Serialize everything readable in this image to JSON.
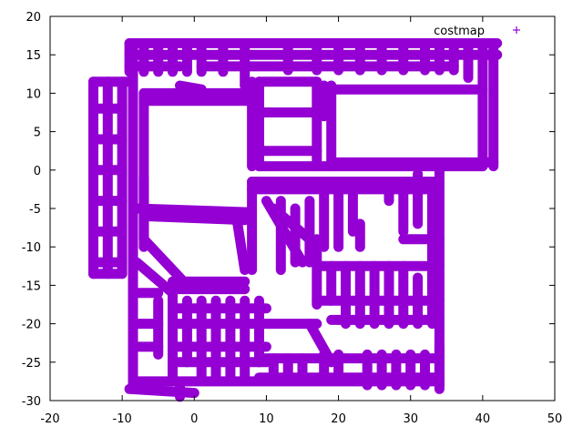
{
  "chart_data": {
    "type": "scatter",
    "title": "",
    "xlabel": "",
    "ylabel": "",
    "xlim": [
      -20,
      50
    ],
    "ylim": [
      -30,
      20
    ],
    "xticks": [
      -20,
      -10,
      0,
      10,
      20,
      30,
      40,
      50
    ],
    "yticks": [
      -30,
      -25,
      -20,
      -15,
      -10,
      -5,
      0,
      5,
      10,
      15,
      20
    ],
    "grid": false,
    "legend_position": "top-right",
    "marker": "+",
    "color": "#9400d3",
    "series": [
      {
        "name": "costmap",
        "segments": [
          [
            [
              -9,
              16.5
            ],
            [
              42,
              16.5
            ]
          ],
          [
            [
              -9,
              15
            ],
            [
              42,
              15
            ]
          ],
          [
            [
              -9,
              13.5
            ],
            [
              -2,
              13.5
            ]
          ],
          [
            [
              1,
              13.5
            ],
            [
              36,
              13.5
            ]
          ],
          [
            [
              -9,
              16.5
            ],
            [
              -9,
              12.8
            ]
          ],
          [
            [
              -7,
              16.5
            ],
            [
              -7,
              12.8
            ]
          ],
          [
            [
              -5,
              16.5
            ],
            [
              -5,
              12.8
            ]
          ],
          [
            [
              -3,
              16.5
            ],
            [
              -3,
              12.8
            ]
          ],
          [
            [
              -1,
              16.5
            ],
            [
              -1,
              12.8
            ]
          ],
          [
            [
              1,
              16.5
            ],
            [
              1,
              12.8
            ]
          ],
          [
            [
              4,
              16
            ],
            [
              4,
              12.8
            ]
          ],
          [
            [
              7,
              16.5
            ],
            [
              7,
              11
            ]
          ],
          [
            [
              13,
              16.5
            ],
            [
              13,
              13
            ]
          ],
          [
            [
              17,
              16.5
            ],
            [
              17,
              13
            ]
          ],
          [
            [
              20,
              16.5
            ],
            [
              20,
              13
            ]
          ],
          [
            [
              23,
              16.5
            ],
            [
              23,
              13
            ]
          ],
          [
            [
              26,
              16.5
            ],
            [
              26,
              13
            ]
          ],
          [
            [
              29,
              16.5
            ],
            [
              29,
              13
            ]
          ],
          [
            [
              32,
              16.5
            ],
            [
              32,
              13
            ]
          ],
          [
            [
              34,
              16.5
            ],
            [
              34,
              13
            ]
          ],
          [
            [
              36,
              16.5
            ],
            [
              36,
              13
            ]
          ],
          [
            [
              38,
              16.5
            ],
            [
              38,
              12
            ]
          ],
          [
            [
              40,
              16
            ],
            [
              40,
              0.5
            ]
          ],
          [
            [
              41.5,
              16
            ],
            [
              41.5,
              0.5
            ]
          ],
          [
            [
              -14,
              11.5
            ],
            [
              -9,
              11.5
            ]
          ],
          [
            [
              -14,
              11.5
            ],
            [
              -14,
              -13.5
            ]
          ],
          [
            [
              -12,
              11.5
            ],
            [
              -12,
              -13.5
            ]
          ],
          [
            [
              -10,
              11.5
            ],
            [
              -10,
              -13.5
            ]
          ],
          [
            [
              -14,
              8
            ],
            [
              -10,
              8
            ]
          ],
          [
            [
              -14,
              4
            ],
            [
              -10,
              4
            ]
          ],
          [
            [
              -14,
              0
            ],
            [
              -10,
              0
            ]
          ],
          [
            [
              -14,
              -4
            ],
            [
              -10,
              -4
            ]
          ],
          [
            [
              -14,
              -8
            ],
            [
              -10,
              -8
            ]
          ],
          [
            [
              -14,
              -12
            ],
            [
              -10,
              -12
            ]
          ],
          [
            [
              -14,
              -13.5
            ],
            [
              -10,
              -13.5
            ]
          ],
          [
            [
              -8.5,
              16.5
            ],
            [
              -8.5,
              -28.5
            ]
          ],
          [
            [
              -7,
              10
            ],
            [
              -7,
              -10
            ]
          ],
          [
            [
              -7,
              10
            ],
            [
              8,
              10
            ]
          ],
          [
            [
              -7,
              9
            ],
            [
              8,
              9
            ]
          ],
          [
            [
              -2,
              11
            ],
            [
              1,
              10.5
            ]
          ],
          [
            [
              8,
              11.5
            ],
            [
              8,
              0.5
            ]
          ],
          [
            [
              9,
              11.5
            ],
            [
              9,
              0.5
            ]
          ],
          [
            [
              9,
              11.5
            ],
            [
              17,
              11.5
            ]
          ],
          [
            [
              9,
              7.5
            ],
            [
              17,
              7.5
            ]
          ],
          [
            [
              9,
              2.5
            ],
            [
              17,
              2.5
            ]
          ],
          [
            [
              9,
              0.5
            ],
            [
              40,
              0.5
            ]
          ],
          [
            [
              17,
              11.5
            ],
            [
              17,
              0.5
            ]
          ],
          [
            [
              18,
              11
            ],
            [
              18,
              7
            ]
          ],
          [
            [
              19,
              11
            ],
            [
              19,
              0.5
            ]
          ],
          [
            [
              19,
              10.5
            ],
            [
              40,
              10.5
            ]
          ],
          [
            [
              19,
              1
            ],
            [
              41.5,
              1
            ]
          ],
          [
            [
              -7,
              -1
            ],
            [
              -7,
              -9
            ]
          ],
          [
            [
              -8,
              -5
            ],
            [
              8,
              -5.5
            ]
          ],
          [
            [
              -7,
              -6
            ],
            [
              7,
              -6.5
            ]
          ],
          [
            [
              -7,
              -9
            ],
            [
              -1,
              -15
            ]
          ],
          [
            [
              -8,
              -12
            ],
            [
              -3,
              -16
            ]
          ],
          [
            [
              -3,
              -14.5
            ],
            [
              7,
              -14.5
            ]
          ],
          [
            [
              -3,
              -15.5
            ],
            [
              7,
              -15.5
            ]
          ],
          [
            [
              6,
              -7
            ],
            [
              7,
              -13
            ]
          ],
          [
            [
              8,
              -1.5
            ],
            [
              8,
              -13
            ]
          ],
          [
            [
              8,
              -1.5
            ],
            [
              34,
              -1.5
            ]
          ],
          [
            [
              8,
              -2.5
            ],
            [
              34,
              -2.5
            ]
          ],
          [
            [
              10,
              -4
            ],
            [
              15,
              -12
            ]
          ],
          [
            [
              11,
              -5
            ],
            [
              16,
              -9
            ]
          ],
          [
            [
              12,
              -4
            ],
            [
              12,
              -13
            ]
          ],
          [
            [
              14,
              -5
            ],
            [
              14,
              -12
            ]
          ],
          [
            [
              16,
              -4
            ],
            [
              16,
              -12
            ]
          ],
          [
            [
              18,
              -2.5
            ],
            [
              18,
              -10
            ]
          ],
          [
            [
              20,
              -3
            ],
            [
              20,
              -10
            ]
          ],
          [
            [
              22,
              -3
            ],
            [
              22,
              -8
            ]
          ],
          [
            [
              23,
              -7
            ],
            [
              23,
              -10
            ]
          ],
          [
            [
              27,
              -2.5
            ],
            [
              27,
              -4
            ]
          ],
          [
            [
              29,
              -2.5
            ],
            [
              29,
              -8
            ]
          ],
          [
            [
              31,
              -0.5
            ],
            [
              31,
              -7
            ]
          ],
          [
            [
              33,
              -2
            ],
            [
              33,
              -15
            ]
          ],
          [
            [
              34,
              0.5
            ],
            [
              34,
              -28.5
            ]
          ],
          [
            [
              29,
              -9
            ],
            [
              34,
              -9
            ]
          ],
          [
            [
              17,
              -12.5
            ],
            [
              34,
              -12.5
            ]
          ],
          [
            [
              17,
              -9
            ],
            [
              17,
              -17.5
            ]
          ],
          [
            [
              17,
              -17
            ],
            [
              34,
              -17
            ]
          ],
          [
            [
              19,
              -12.5
            ],
            [
              19,
              -17
            ]
          ],
          [
            [
              21,
              -12.5
            ],
            [
              21,
              -20
            ]
          ],
          [
            [
              23,
              -12.5
            ],
            [
              23,
              -20
            ]
          ],
          [
            [
              25,
              -12.5
            ],
            [
              25,
              -20
            ]
          ],
          [
            [
              27,
              -12.5
            ],
            [
              27,
              -20
            ]
          ],
          [
            [
              29,
              -12.5
            ],
            [
              29,
              -20
            ]
          ],
          [
            [
              31,
              -14
            ],
            [
              31,
              -20
            ]
          ],
          [
            [
              33,
              -14
            ],
            [
              33,
              -20
            ]
          ],
          [
            [
              19,
              -19.5
            ],
            [
              34,
              -19.5
            ]
          ],
          [
            [
              -8,
              -16
            ],
            [
              -5,
              -16
            ]
          ],
          [
            [
              -8,
              -20
            ],
            [
              -5,
              -20
            ]
          ],
          [
            [
              -8,
              -23
            ],
            [
              -5,
              -23
            ]
          ],
          [
            [
              -5,
              -17
            ],
            [
              -5,
              -24
            ]
          ],
          [
            [
              -3,
              -16
            ],
            [
              -3,
              -27
            ]
          ],
          [
            [
              -3,
              -18
            ],
            [
              10,
              -18
            ]
          ],
          [
            [
              -3,
              -20
            ],
            [
              9,
              -20
            ]
          ],
          [
            [
              -3,
              -23
            ],
            [
              10,
              -23
            ]
          ],
          [
            [
              -3,
              -25
            ],
            [
              10,
              -25
            ]
          ],
          [
            [
              -1,
              -17
            ],
            [
              -1,
              -25
            ]
          ],
          [
            [
              1,
              -17
            ],
            [
              1,
              -27
            ]
          ],
          [
            [
              3,
              -17
            ],
            [
              3,
              -27
            ]
          ],
          [
            [
              5,
              -17
            ],
            [
              5,
              -27
            ]
          ],
          [
            [
              7,
              -17
            ],
            [
              7,
              -27
            ]
          ],
          [
            [
              9,
              -17
            ],
            [
              9,
              -25
            ]
          ],
          [
            [
              9,
              -20
            ],
            [
              17,
              -20
            ]
          ],
          [
            [
              16,
              -20
            ],
            [
              19,
              -25
            ]
          ],
          [
            [
              9,
              -24.5
            ],
            [
              34,
              -24.5
            ]
          ],
          [
            [
              9,
              -27
            ],
            [
              34,
              -27
            ]
          ],
          [
            [
              11,
              -24.5
            ],
            [
              11,
              -27
            ]
          ],
          [
            [
              13,
              -24.5
            ],
            [
              13,
              -27
            ]
          ],
          [
            [
              15,
              -24.5
            ],
            [
              15,
              -27
            ]
          ],
          [
            [
              18,
              -24
            ],
            [
              18,
              -27
            ]
          ],
          [
            [
              20,
              -24
            ],
            [
              20,
              -27
            ]
          ],
          [
            [
              24,
              -24
            ],
            [
              24,
              -28
            ]
          ],
          [
            [
              26,
              -24
            ],
            [
              26,
              -28
            ]
          ],
          [
            [
              28,
              -24
            ],
            [
              28,
              -28
            ]
          ],
          [
            [
              30,
              -24
            ],
            [
              30,
              -28
            ]
          ],
          [
            [
              32,
              -24
            ],
            [
              32,
              -28
            ]
          ],
          [
            [
              -9,
              -28.5
            ],
            [
              0,
              -29
            ]
          ],
          [
            [
              -8,
              -27.5
            ],
            [
              34,
              -27.5
            ]
          ],
          [
            [
              -2,
              -28
            ],
            [
              -2,
              -29.5
            ]
          ],
          [
            [
              34,
              -23
            ],
            [
              34,
              -28
            ]
          ]
        ]
      }
    ]
  }
}
